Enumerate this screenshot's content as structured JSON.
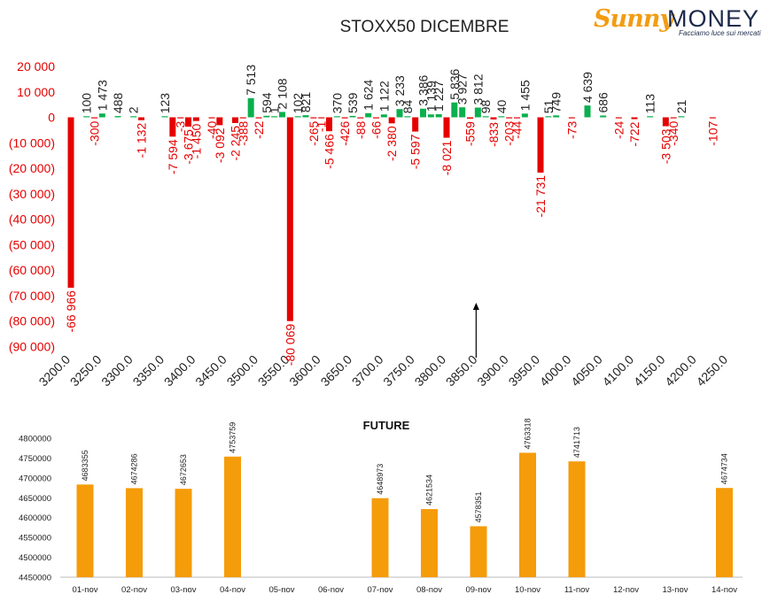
{
  "brand": {
    "name_part1": "Sunny",
    "name_part2": "MONEY",
    "tagline": "Facciamo luce sui mercati"
  },
  "chart_data": [
    {
      "type": "bar",
      "title": "STOXX50 DICEMBRE",
      "ylim": [
        -90000,
        20000
      ],
      "yticks": [
        20000,
        10000,
        0,
        -10000,
        -20000,
        -30000,
        -40000,
        -50000,
        -60000,
        -70000,
        -80000,
        -90000
      ],
      "ytick_labels": [
        "20 000",
        "10 000",
        "0",
        "(10 000)",
        "(20 000)",
        "(30 000)",
        "(40 000)",
        "(50 000)",
        "(60 000)",
        "(70 000)",
        "(80 000)",
        "(90 000)"
      ],
      "x_tick_labels": [
        "3200.0",
        "3250.0",
        "3300.0",
        "3350.0",
        "3400.0",
        "3450.0",
        "3500.0",
        "3550.0",
        "3600.0",
        "3650.0",
        "3700.0",
        "3750.0",
        "3800.0",
        "3850.0",
        "3900.0",
        "3950.0",
        "4000.0",
        "4050.0",
        "4100.0",
        "4150.0",
        "4200.0",
        "4250.0"
      ],
      "x_range": [
        3200,
        4250
      ],
      "current_level_marker": 3850,
      "colors": {
        "negative": "#e60000",
        "positive": "#0ab04d",
        "axis_label": "#e60000"
      },
      "series": [
        {
          "values": [
            {
              "x": 3200,
              "y": -66966,
              "label": "-66 966"
            },
            {
              "x": 3225,
              "y": 100,
              "label": "100"
            },
            {
              "x": 3237.5,
              "y": -300,
              "label": "-300"
            },
            {
              "x": 3250,
              "y": 1473,
              "label": "1 473"
            },
            {
              "x": 3275,
              "y": 488,
              "label": "488"
            },
            {
              "x": 3300,
              "y": 2,
              "label": "2"
            },
            {
              "x": 3312.5,
              "y": -1132,
              "label": "-1 132"
            },
            {
              "x": 3350,
              "y": 123,
              "label": "123"
            },
            {
              "x": 3362.5,
              "y": -7594,
              "label": "-7 594"
            },
            {
              "x": 3375,
              "y": -3,
              "label": "-3"
            },
            {
              "x": 3387.5,
              "y": -3675,
              "label": "-3 675"
            },
            {
              "x": 3400,
              "y": -1450,
              "label": "-1 450"
            },
            {
              "x": 3425,
              "y": -40,
              "label": "-40"
            },
            {
              "x": 3437.5,
              "y": -3092,
              "label": "-3 092"
            },
            {
              "x": 3462.5,
              "y": -2245,
              "label": "-2 245"
            },
            {
              "x": 3475,
              "y": -388,
              "label": "-388"
            },
            {
              "x": 3487.5,
              "y": 7513,
              "label": "7 513"
            },
            {
              "x": 3500,
              "y": -22,
              "label": "-22"
            },
            {
              "x": 3512.5,
              "y": 594,
              "label": "594"
            },
            {
              "x": 3525,
              "y": 1,
              "label": "1"
            },
            {
              "x": 3537.5,
              "y": 2108,
              "label": "2 108"
            },
            {
              "x": 3550,
              "y": -80069,
              "label": "-80 069"
            },
            {
              "x": 3562.5,
              "y": 102,
              "label": "102"
            },
            {
              "x": 3575,
              "y": 821,
              "label": "821"
            },
            {
              "x": 3587.5,
              "y": -265,
              "label": "-265"
            },
            {
              "x": 3600,
              "y": -1,
              "label": "-1"
            },
            {
              "x": 3612.5,
              "y": -5466,
              "label": "-5 466"
            },
            {
              "x": 3625,
              "y": 370,
              "label": "370"
            },
            {
              "x": 3637.5,
              "y": -426,
              "label": "-426"
            },
            {
              "x": 3650,
              "y": 539,
              "label": "539"
            },
            {
              "x": 3662.5,
              "y": -88,
              "label": "-88"
            },
            {
              "x": 3675,
              "y": 1624,
              "label": "1 624"
            },
            {
              "x": 3687.5,
              "y": -66,
              "label": "-66"
            },
            {
              "x": 3700,
              "y": 1122,
              "label": "1 122"
            },
            {
              "x": 3712.5,
              "y": -2380,
              "label": "-2 380"
            },
            {
              "x": 3725,
              "y": 3233,
              "label": "3 233"
            },
            {
              "x": 3737.5,
              "y": 84,
              "label": "84"
            },
            {
              "x": 3750,
              "y": -5597,
              "label": "-5 597"
            },
            {
              "x": 3762.5,
              "y": 3386,
              "label": "3 386"
            },
            {
              "x": 3775,
              "y": 1139,
              "label": "1 139"
            },
            {
              "x": 3787.5,
              "y": 1227,
              "label": "1 227"
            },
            {
              "x": 3800,
              "y": -8021,
              "label": "-8 021"
            },
            {
              "x": 3812.5,
              "y": 5836,
              "label": "5 836"
            },
            {
              "x": 3825,
              "y": 3927,
              "label": "3 927"
            },
            {
              "x": 3837.5,
              "y": -559,
              "label": "-559"
            },
            {
              "x": 3850,
              "y": 3812,
              "label": "3 812"
            },
            {
              "x": 3862.5,
              "y": 98,
              "label": "98"
            },
            {
              "x": 3875,
              "y": -833,
              "label": "-833"
            },
            {
              "x": 3887.5,
              "y": 40,
              "label": "40"
            },
            {
              "x": 3900,
              "y": -203,
              "label": "-203"
            },
            {
              "x": 3912.5,
              "y": -44,
              "label": "-44"
            },
            {
              "x": 3925,
              "y": 1455,
              "label": "1 455"
            },
            {
              "x": 3950,
              "y": -21731,
              "label": "-21 731"
            },
            {
              "x": 3962.5,
              "y": 51,
              "label": "51"
            },
            {
              "x": 3975,
              "y": 749,
              "label": "749"
            },
            {
              "x": 4000,
              "y": -73,
              "label": "-73"
            },
            {
              "x": 4025,
              "y": 4639,
              "label": "4 639"
            },
            {
              "x": 4050,
              "y": 686,
              "label": "686"
            },
            {
              "x": 4075,
              "y": -24,
              "label": "-24"
            },
            {
              "x": 4100,
              "y": -722,
              "label": "-722"
            },
            {
              "x": 4125,
              "y": 113,
              "label": "113"
            },
            {
              "x": 4150,
              "y": -3503,
              "label": "-3 503"
            },
            {
              "x": 4162.5,
              "y": -340,
              "label": "-340"
            },
            {
              "x": 4175,
              "y": 21,
              "label": "21"
            },
            {
              "x": 4225,
              "y": -107,
              "label": "-107"
            }
          ]
        }
      ]
    },
    {
      "type": "bar",
      "title": "FUTURE",
      "ylim": [
        4450000,
        4800000
      ],
      "yticks": [
        4800000,
        4750000,
        4700000,
        4650000,
        4600000,
        4550000,
        4500000,
        4450000
      ],
      "ytick_labels": [
        "4800000",
        "4750000",
        "4700000",
        "4650000",
        "4600000",
        "4550000",
        "4500000",
        "4450000"
      ],
      "categories": [
        "01-nov",
        "02-nov",
        "03-nov",
        "04-nov",
        "05-nov",
        "06-nov",
        "07-nov",
        "08-nov",
        "09-nov",
        "10-nov",
        "11-nov",
        "12-nov",
        "13-nov",
        "14-nov"
      ],
      "values": [
        4683355,
        4674286,
        4672653,
        4753759,
        null,
        null,
        4648973,
        4621534,
        4578351,
        4763318,
        4741713,
        null,
        null,
        4674734
      ],
      "value_labels": [
        "4683355",
        "4674286",
        "4672653",
        "4753759",
        "",
        "",
        "4648973",
        "4621534",
        "4578351",
        "4763318",
        "4741713",
        "",
        "",
        "4674734"
      ],
      "colors": {
        "bar": "#f59c0a"
      }
    }
  ]
}
